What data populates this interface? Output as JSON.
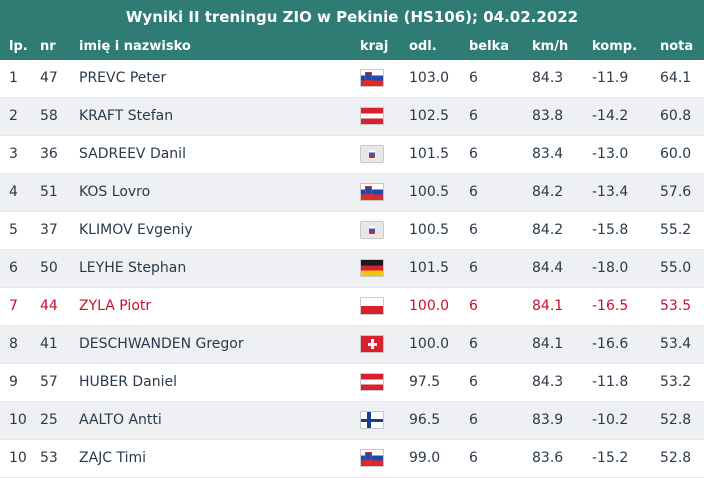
{
  "title": "Wyniki II treningu ZIO w Pekinie (HS106); 04.02.2022",
  "headers": {
    "lp": "lp.",
    "nr": "nr",
    "name": "imię i nazwisko",
    "country": "kraj",
    "odl": "odl.",
    "belka": "belka",
    "kmh": "km/h",
    "komp": "komp.",
    "nota": "nota"
  },
  "colors": {
    "header_bg": "#2e7c74",
    "highlight_text": "#c8102e"
  },
  "rows": [
    {
      "lp": "1",
      "nr": "47",
      "name": "PREVC Peter",
      "flag": "slovenia-flag",
      "odl": "103.0",
      "belka": "6",
      "kmh": "84.3",
      "komp": "-11.9",
      "nota": "64.1"
    },
    {
      "lp": "2",
      "nr": "58",
      "name": "KRAFT Stefan",
      "flag": "austria-flag",
      "odl": "102.5",
      "belka": "6",
      "kmh": "83.8",
      "komp": "-14.2",
      "nota": "60.8"
    },
    {
      "lp": "3",
      "nr": "36",
      "name": "SADREEV Danil",
      "flag": "roc-flag",
      "odl": "101.5",
      "belka": "6",
      "kmh": "83.4",
      "komp": "-13.0",
      "nota": "60.0"
    },
    {
      "lp": "4",
      "nr": "51",
      "name": "KOS Lovro",
      "flag": "slovenia-flag",
      "odl": "100.5",
      "belka": "6",
      "kmh": "84.2",
      "komp": "-13.4",
      "nota": "57.6"
    },
    {
      "lp": "5",
      "nr": "37",
      "name": "KLIMOV Evgeniy",
      "flag": "roc-flag",
      "odl": "100.5",
      "belka": "6",
      "kmh": "84.2",
      "komp": "-15.8",
      "nota": "55.2"
    },
    {
      "lp": "6",
      "nr": "50",
      "name": "LEYHE Stephan",
      "flag": "germany-flag",
      "odl": "101.5",
      "belka": "6",
      "kmh": "84.4",
      "komp": "-18.0",
      "nota": "55.0"
    },
    {
      "lp": "7",
      "nr": "44",
      "name": "ZYLA Piotr",
      "flag": "poland-flag",
      "odl": "100.0",
      "belka": "6",
      "kmh": "84.1",
      "komp": "-16.5",
      "nota": "53.5",
      "highlight": true
    },
    {
      "lp": "8",
      "nr": "41",
      "name": "DESCHWANDEN Gregor",
      "flag": "switzerland-flag",
      "odl": "100.0",
      "belka": "6",
      "kmh": "84.1",
      "komp": "-16.6",
      "nota": "53.4"
    },
    {
      "lp": "9",
      "nr": "57",
      "name": "HUBER Daniel",
      "flag": "austria-flag",
      "odl": "97.5",
      "belka": "6",
      "kmh": "84.3",
      "komp": "-11.8",
      "nota": "53.2"
    },
    {
      "lp": "10",
      "nr": "25",
      "name": "AALTO Antti",
      "flag": "finland-flag",
      "odl": "96.5",
      "belka": "6",
      "kmh": "83.9",
      "komp": "-10.2",
      "nota": "52.8"
    },
    {
      "lp": "10",
      "nr": "53",
      "name": "ZAJC Timi",
      "flag": "slovenia-flag",
      "odl": "99.0",
      "belka": "6",
      "kmh": "83.6",
      "komp": "-15.2",
      "nota": "52.8"
    }
  ]
}
